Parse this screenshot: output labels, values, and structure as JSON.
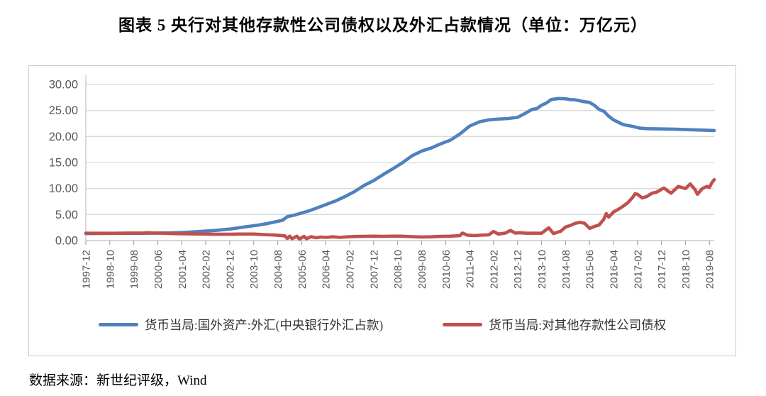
{
  "chart_data": {
    "type": "line",
    "title": "图表 5  央行对其他存款性公司债权以及外汇占款情况（单位：万亿元）",
    "source": "数据来源：新世纪评级，Wind",
    "unit": "万亿元",
    "grid": true,
    "legend_position": "bottom",
    "ylim": [
      0,
      30
    ],
    "y_tick_values": [
      0,
      5,
      10,
      15,
      20,
      25,
      30
    ],
    "y_tick_labels": [
      "0.00",
      "5.00",
      "10.00",
      "15.00",
      "20.00",
      "25.00",
      "30.00"
    ],
    "x_tick_labels": [
      "1997-12",
      "1998-10",
      "1999-08",
      "2000-06",
      "2001-04",
      "2002-02",
      "2002-12",
      "2003-10",
      "2004-08",
      "2005-06",
      "2006-04",
      "2007-02",
      "2007-12",
      "2008-10",
      "2009-08",
      "2010-06",
      "2011-04",
      "2012-02",
      "2012-12",
      "2013-10",
      "2014-08",
      "2015-06",
      "2016-04",
      "2017-02",
      "2017-12",
      "2018-10",
      "2019-08"
    ],
    "x_tick_interval_months": 10,
    "x_start": "1997-12",
    "x_end": "2019-10",
    "x_max_month_index": 262,
    "axis_label_color": "#595959",
    "gridline_color": "#d9d9d9",
    "series": [
      {
        "name": "货币当局:国外资产:外汇(中央银行外汇占款)",
        "color": "#4F81BD",
        "points": [
          [
            0,
            1.35
          ],
          [
            6,
            1.37
          ],
          [
            12,
            1.39
          ],
          [
            18,
            1.4
          ],
          [
            24,
            1.41
          ],
          [
            30,
            1.44
          ],
          [
            36,
            1.48
          ],
          [
            42,
            1.6
          ],
          [
            48,
            1.77
          ],
          [
            54,
            1.95
          ],
          [
            60,
            2.21
          ],
          [
            66,
            2.6
          ],
          [
            72,
            2.98
          ],
          [
            76,
            3.3
          ],
          [
            80,
            3.7
          ],
          [
            82,
            3.9
          ],
          [
            84,
            4.59
          ],
          [
            87,
            4.9
          ],
          [
            90,
            5.3
          ],
          [
            93,
            5.7
          ],
          [
            96,
            6.21
          ],
          [
            100,
            6.9
          ],
          [
            104,
            7.6
          ],
          [
            108,
            8.44
          ],
          [
            112,
            9.4
          ],
          [
            116,
            10.6
          ],
          [
            120,
            11.52
          ],
          [
            124,
            12.7
          ],
          [
            128,
            13.8
          ],
          [
            132,
            14.96
          ],
          [
            136,
            16.3
          ],
          [
            140,
            17.2
          ],
          [
            144,
            17.8
          ],
          [
            148,
            18.6
          ],
          [
            152,
            19.3
          ],
          [
            156,
            20.5
          ],
          [
            160,
            22.0
          ],
          [
            164,
            22.8
          ],
          [
            168,
            23.2
          ],
          [
            172,
            23.35
          ],
          [
            176,
            23.45
          ],
          [
            180,
            23.67
          ],
          [
            183,
            24.4
          ],
          [
            186,
            25.2
          ],
          [
            188,
            25.35
          ],
          [
            190,
            26.0
          ],
          [
            192,
            26.43
          ],
          [
            194,
            27.1
          ],
          [
            197,
            27.3
          ],
          [
            200,
            27.25
          ],
          [
            202,
            27.1
          ],
          [
            204,
            27.05
          ],
          [
            207,
            26.75
          ],
          [
            210,
            26.55
          ],
          [
            212,
            26.0
          ],
          [
            214,
            25.2
          ],
          [
            216,
            24.85
          ],
          [
            218,
            23.9
          ],
          [
            220,
            23.2
          ],
          [
            224,
            22.3
          ],
          [
            228,
            21.94
          ],
          [
            231,
            21.6
          ],
          [
            234,
            21.5
          ],
          [
            240,
            21.45
          ],
          [
            246,
            21.4
          ],
          [
            252,
            21.3
          ],
          [
            256,
            21.25
          ],
          [
            262,
            21.15
          ]
        ]
      },
      {
        "name": "货币当局:对其他存款性公司债权",
        "color": "#C0504D",
        "points": [
          [
            0,
            1.42
          ],
          [
            6,
            1.4
          ],
          [
            12,
            1.41
          ],
          [
            18,
            1.44
          ],
          [
            24,
            1.46
          ],
          [
            26,
            1.52
          ],
          [
            28,
            1.46
          ],
          [
            32,
            1.42
          ],
          [
            36,
            1.35
          ],
          [
            42,
            1.3
          ],
          [
            48,
            1.25
          ],
          [
            54,
            1.22
          ],
          [
            60,
            1.22
          ],
          [
            64,
            1.25
          ],
          [
            70,
            1.25
          ],
          [
            74,
            1.15
          ],
          [
            78,
            1.08
          ],
          [
            81,
            1.0
          ],
          [
            83,
            0.9
          ],
          [
            84,
            0.4
          ],
          [
            85,
            0.85
          ],
          [
            86,
            0.35
          ],
          [
            88,
            0.85
          ],
          [
            89,
            0.3
          ],
          [
            91,
            0.8
          ],
          [
            92,
            0.35
          ],
          [
            94,
            0.75
          ],
          [
            96,
            0.55
          ],
          [
            98,
            0.68
          ],
          [
            100,
            0.62
          ],
          [
            103,
            0.72
          ],
          [
            106,
            0.62
          ],
          [
            109,
            0.72
          ],
          [
            112,
            0.78
          ],
          [
            116,
            0.82
          ],
          [
            120,
            0.85
          ],
          [
            124,
            0.82
          ],
          [
            128,
            0.85
          ],
          [
            132,
            0.84
          ],
          [
            136,
            0.75
          ],
          [
            140,
            0.7
          ],
          [
            144,
            0.72
          ],
          [
            148,
            0.8
          ],
          [
            152,
            0.85
          ],
          [
            156,
            0.95
          ],
          [
            157,
            1.45
          ],
          [
            159,
            1.05
          ],
          [
            162,
            0.95
          ],
          [
            165,
            1.05
          ],
          [
            168,
            1.1
          ],
          [
            170,
            1.75
          ],
          [
            172,
            1.25
          ],
          [
            175,
            1.45
          ],
          [
            177,
            1.95
          ],
          [
            179,
            1.45
          ],
          [
            181,
            1.52
          ],
          [
            184,
            1.4
          ],
          [
            187,
            1.42
          ],
          [
            190,
            1.4
          ],
          [
            193,
            2.45
          ],
          [
            195,
            1.35
          ],
          [
            198,
            1.8
          ],
          [
            200,
            2.6
          ],
          [
            202,
            2.9
          ],
          [
            204,
            3.3
          ],
          [
            206,
            3.5
          ],
          [
            208,
            3.3
          ],
          [
            210,
            2.35
          ],
          [
            212,
            2.7
          ],
          [
            214,
            3.0
          ],
          [
            216,
            4.1
          ],
          [
            217,
            5.2
          ],
          [
            218,
            4.5
          ],
          [
            219,
            5.0
          ],
          [
            220,
            5.5
          ],
          [
            222,
            6.0
          ],
          [
            224,
            6.6
          ],
          [
            226,
            7.3
          ],
          [
            228,
            8.3
          ],
          [
            229,
            9.0
          ],
          [
            230,
            8.9
          ],
          [
            232,
            8.2
          ],
          [
            234,
            8.5
          ],
          [
            236,
            9.1
          ],
          [
            238,
            9.3
          ],
          [
            241,
            10.1
          ],
          [
            244,
            9.1
          ],
          [
            247,
            10.4
          ],
          [
            250,
            10.0
          ],
          [
            252,
            10.9
          ],
          [
            254,
            9.8
          ],
          [
            255,
            8.9
          ],
          [
            257,
            10.0
          ],
          [
            259,
            10.4
          ],
          [
            260,
            10.2
          ],
          [
            261,
            11.1
          ],
          [
            262,
            11.7
          ]
        ]
      }
    ]
  }
}
